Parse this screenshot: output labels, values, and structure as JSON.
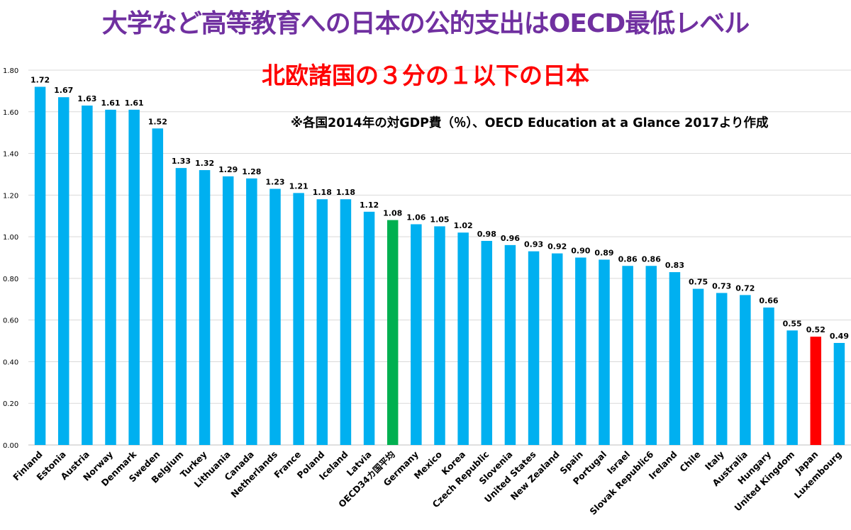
{
  "colors": {
    "title": "#7030a0",
    "subtitle": "#ff0000",
    "bar_default": "#00b0f0",
    "bar_average": "#00b050",
    "bar_japan": "#ff0000",
    "grid": "#d9d9d9"
  },
  "title": "大学など高等教育への日本の公的支出はOECD最低レベル",
  "subtitle": "北欧諸国の３分の１以下の日本",
  "note": "※各国2014年の対GDP費（％）、OECD Education at a Glance 2017より作成",
  "chart_data": {
    "type": "bar",
    "title": "大学など高等教育への日本の公的支出はOECD最低レベル",
    "xlabel": "",
    "ylabel": "",
    "ylim": [
      0,
      1.8
    ],
    "yticks": [
      "0.00",
      "0.20",
      "0.40",
      "0.60",
      "0.80",
      "1.00",
      "1.20",
      "1.40",
      "1.60",
      "1.80"
    ],
    "grid": true,
    "categories": [
      "Finland",
      "Estonia",
      "Austria",
      "Norway",
      "Denmark",
      "Sweden",
      "Belgium",
      "Turkey",
      "Lithuania",
      "Canada",
      "Netherlands",
      "France",
      "Poland",
      "Iceland",
      "Latvia",
      "OECD34カ国平均",
      "Germany",
      "Mexico",
      "Korea",
      "Czech Republic",
      "Slovenia",
      "United States",
      "New Zealand",
      "Spain",
      "Portugal",
      "Israel",
      "Slovak Republic6",
      "Ireland",
      "Chile",
      "Italy",
      "Australia",
      "Hungary",
      "United Kingdom",
      "Japan",
      "Luxembourg"
    ],
    "values": [
      1.72,
      1.67,
      1.63,
      1.61,
      1.61,
      1.52,
      1.33,
      1.32,
      1.29,
      1.28,
      1.23,
      1.21,
      1.18,
      1.18,
      1.12,
      1.08,
      1.06,
      1.05,
      1.02,
      0.98,
      0.96,
      0.93,
      0.92,
      0.9,
      0.89,
      0.86,
      0.86,
      0.83,
      0.75,
      0.73,
      0.72,
      0.66,
      0.55,
      0.52,
      0.49
    ],
    "value_labels": [
      "1.72",
      "1.67",
      "1.63",
      "1.61",
      "1.61",
      "1.52",
      "1.33",
      "1.32",
      "1.29",
      "1.28",
      "1.23",
      "1.21",
      "1.18",
      "1.18",
      "1.12",
      "1.08",
      "1.06",
      "1.05",
      "1.02",
      "0.98",
      "0.96",
      "0.93",
      "0.92",
      "0.90",
      "0.89",
      "0.86",
      "0.86",
      "0.83",
      "0.75",
      "0.73",
      "0.72",
      "0.66",
      "0.55",
      "0.52",
      "0.49"
    ],
    "highlight": {
      "OECD34カ国平均": "average",
      "Japan": "japan"
    }
  }
}
